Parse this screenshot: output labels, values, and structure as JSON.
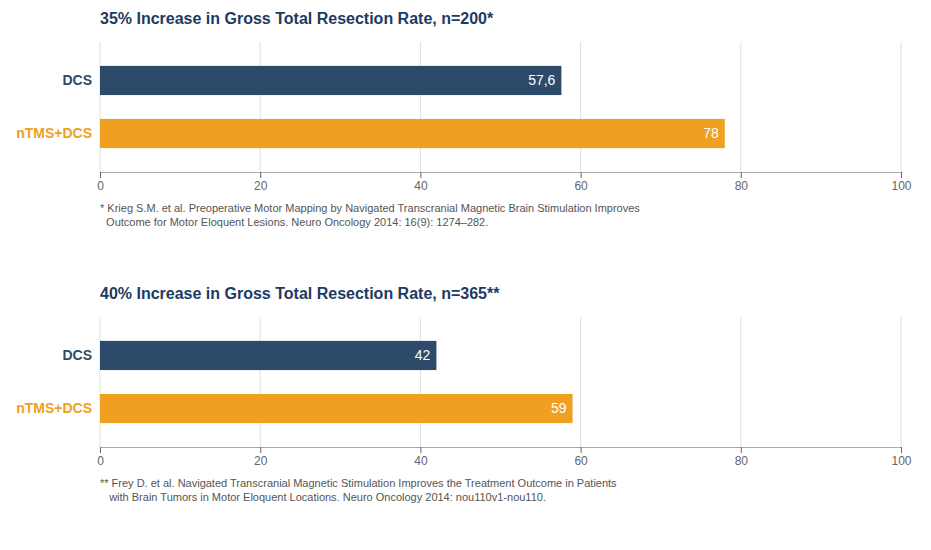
{
  "chart_data": [
    {
      "type": "bar",
      "orientation": "horizontal",
      "title": "35% Increase in Gross Total Resection Rate, n=200*",
      "categories": [
        "DCS",
        "nTMS+DCS"
      ],
      "values": [
        57.6,
        78
      ],
      "value_labels": [
        "57,6",
        "78"
      ],
      "colors": [
        "#2e4a6b",
        "#f0a020"
      ],
      "data_labels": true,
      "xlim": [
        0,
        100
      ],
      "xticks": [
        0,
        20,
        40,
        60,
        80,
        100
      ],
      "grid": true,
      "annotations": [
        "* Krieg S.M. et al. Preoperative Motor Mapping by Navigated Transcranial Magnetic Brain Stimulation Improves",
        "  Outcome for Motor Eloquent Lesions. Neuro Oncology 2014: 16(9): 1274–282."
      ]
    },
    {
      "type": "bar",
      "orientation": "horizontal",
      "title": "40% Increase in Gross Total Resection Rate, n=365**",
      "categories": [
        "DCS",
        "nTMS+DCS"
      ],
      "values": [
        42,
        59
      ],
      "colors": [
        "#2e4a6b",
        "#f0a020"
      ],
      "data_labels": true,
      "xlim": [
        0,
        100
      ],
      "xticks": [
        0,
        20,
        40,
        60,
        80,
        100
      ],
      "grid": true,
      "annotations": [
        "** Frey D. et al. Navigated Transcranial Magnetic Stimulation Improves the Treatment Outcome in Patients",
        "   with Brain Tumors in Motor Eloquent Locations. Neuro Oncology 2014: nou110v1-nou110."
      ]
    }
  ]
}
